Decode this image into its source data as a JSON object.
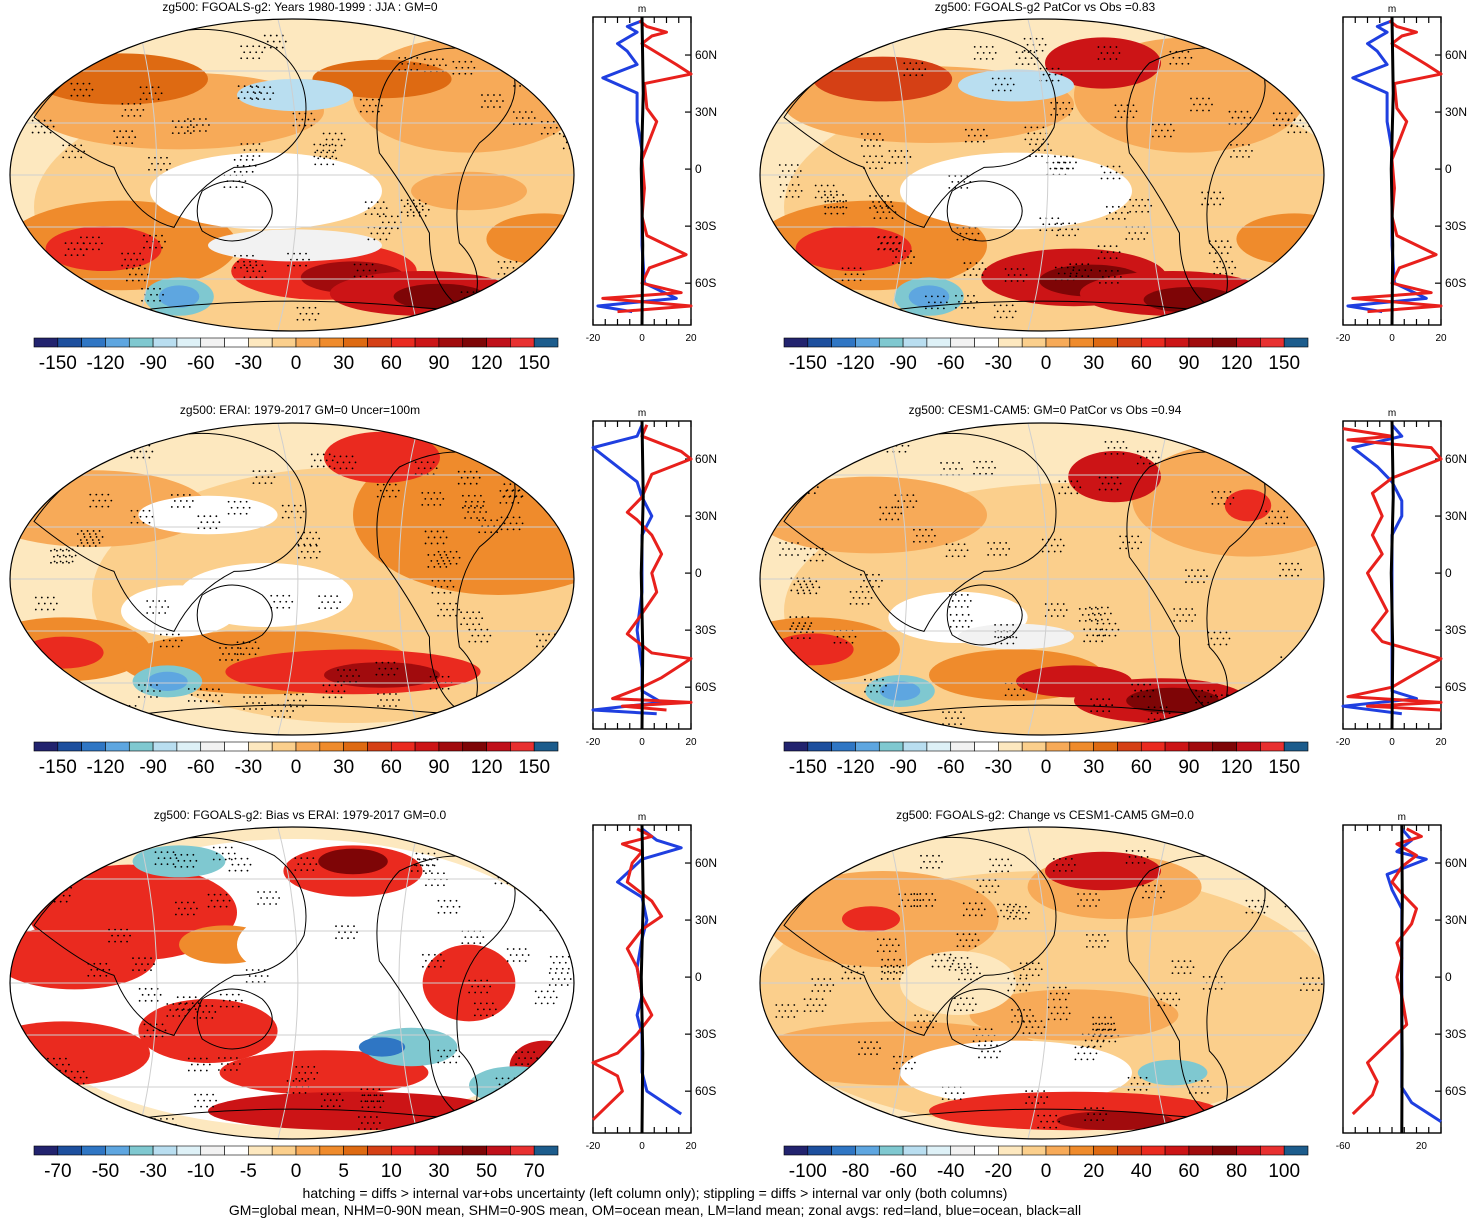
{
  "footer": {
    "line1": "hatching = diffs > internal var+obs uncertainty (left column only); stippling = diffs > internal var only (both columns)",
    "line2": "GM=global mean, NHM=0-90N mean, SHM=0-90S mean, OM=ocean mean, LM=land mean; zonal avgs: red=land, blue=ocean, black=all"
  },
  "colors": {
    "land": "#e8201c",
    "ocean": "#1f3fe0",
    "all": "#000000",
    "map_edge": "#000000",
    "palette_div": [
      "#22236e",
      "#1d4f9e",
      "#2f76c4",
      "#5ea6e0",
      "#7fc8d0",
      "#b9def0",
      "#def1f7",
      "#f2f2f2",
      "#ffffff",
      "#fde8bf",
      "#fbcf8c",
      "#f7aa58",
      "#ef8b2c",
      "#de6a12",
      "#d54015",
      "#ea2a1f",
      "#cc1416",
      "#a10b0d",
      "#7e0506",
      "#c0101a",
      "#e83030",
      "#1c5c8c"
    ]
  },
  "chart_data": [
    {
      "type": "map+zonal",
      "title": "zg500: FGOALS-g2: Years 1980-1999 : JJA : GM=0",
      "colorbar_labels": [
        "-150",
        "-120",
        "-90",
        "-60",
        "-30",
        "0",
        "30",
        "60",
        "90",
        "120",
        "150"
      ],
      "zonal": {
        "unit": "m",
        "xlim": [
          -20,
          20
        ],
        "xticks": [
          "-20",
          "0",
          "20"
        ],
        "lat_labels": [
          "60N",
          "30N",
          "0",
          "30S",
          "60S"
        ],
        "lat_values": [
          60,
          30,
          0,
          -30,
          -60
        ]
      }
    },
    {
      "type": "map+zonal",
      "title": "zg500: FGOALS-g2 PatCor vs Obs =0.83",
      "colorbar_labels": [
        "-150",
        "-120",
        "-90",
        "-60",
        "-30",
        "0",
        "30",
        "60",
        "90",
        "120",
        "150"
      ],
      "zonal": {
        "unit": "m",
        "xlim": [
          -20,
          20
        ],
        "xticks": [
          "-20",
          "0",
          "20"
        ],
        "lat_labels": [
          "60N",
          "30N",
          "0",
          "30S",
          "60S"
        ],
        "lat_values": [
          60,
          30,
          0,
          -30,
          -60
        ]
      }
    },
    {
      "type": "map+zonal",
      "title": "zg500: ERAI: 1979-2017 GM=0 Uncer=100m",
      "colorbar_labels": [
        "-150",
        "-120",
        "-90",
        "-60",
        "-30",
        "0",
        "30",
        "60",
        "90",
        "120",
        "150"
      ],
      "zonal": {
        "unit": "m",
        "xlim": [
          -20,
          20
        ],
        "xticks": [
          "-20",
          "0",
          "20"
        ],
        "lat_labels": [
          "60N",
          "30N",
          "0",
          "30S",
          "60S"
        ],
        "lat_values": [
          60,
          30,
          0,
          -30,
          -60
        ]
      }
    },
    {
      "type": "map+zonal",
      "title": "zg500: CESM1-CAM5: GM=0 PatCor vs Obs =0.94",
      "colorbar_labels": [
        "-150",
        "-120",
        "-90",
        "-60",
        "-30",
        "0",
        "30",
        "60",
        "90",
        "120",
        "150"
      ],
      "zonal": {
        "unit": "m",
        "xlim": [
          -20,
          20
        ],
        "xticks": [
          "-20",
          "0",
          "20"
        ],
        "lat_labels": [
          "60N",
          "30N",
          "0",
          "30S",
          "60S"
        ],
        "lat_values": [
          60,
          30,
          0,
          -30,
          -60
        ]
      }
    },
    {
      "type": "map+zonal",
      "title": "zg500: FGOALS-g2: Bias vs ERAI: 1979-2017 GM=0.0",
      "colorbar_labels": [
        "-70",
        "-50",
        "-30",
        "-10",
        "-5",
        "0",
        "5",
        "10",
        "30",
        "50",
        "70"
      ],
      "zonal": {
        "unit": "m",
        "xlim": [
          -20,
          20
        ],
        "xticks": [
          "-20",
          "0",
          "20"
        ],
        "lat_labels": [
          "60N",
          "30N",
          "0",
          "30S",
          "60S"
        ],
        "lat_values": [
          60,
          30,
          0,
          -30,
          -60
        ]
      }
    },
    {
      "type": "map+zonal",
      "title": "zg500: FGOALS-g2: Change vs CESM1-CAM5 GM=0.0",
      "colorbar_labels": [
        "-100",
        "-80",
        "-60",
        "-40",
        "-20",
        "0",
        "20",
        "40",
        "60",
        "80",
        "100"
      ],
      "zonal": {
        "unit": "m",
        "xlim": [
          -60,
          40
        ],
        "xticks": [
          "-60",
          "20"
        ],
        "lat_labels": [
          "60N",
          "30N",
          "0",
          "30S",
          "60S"
        ],
        "lat_values": [
          60,
          30,
          0,
          -30,
          -60
        ]
      }
    }
  ]
}
